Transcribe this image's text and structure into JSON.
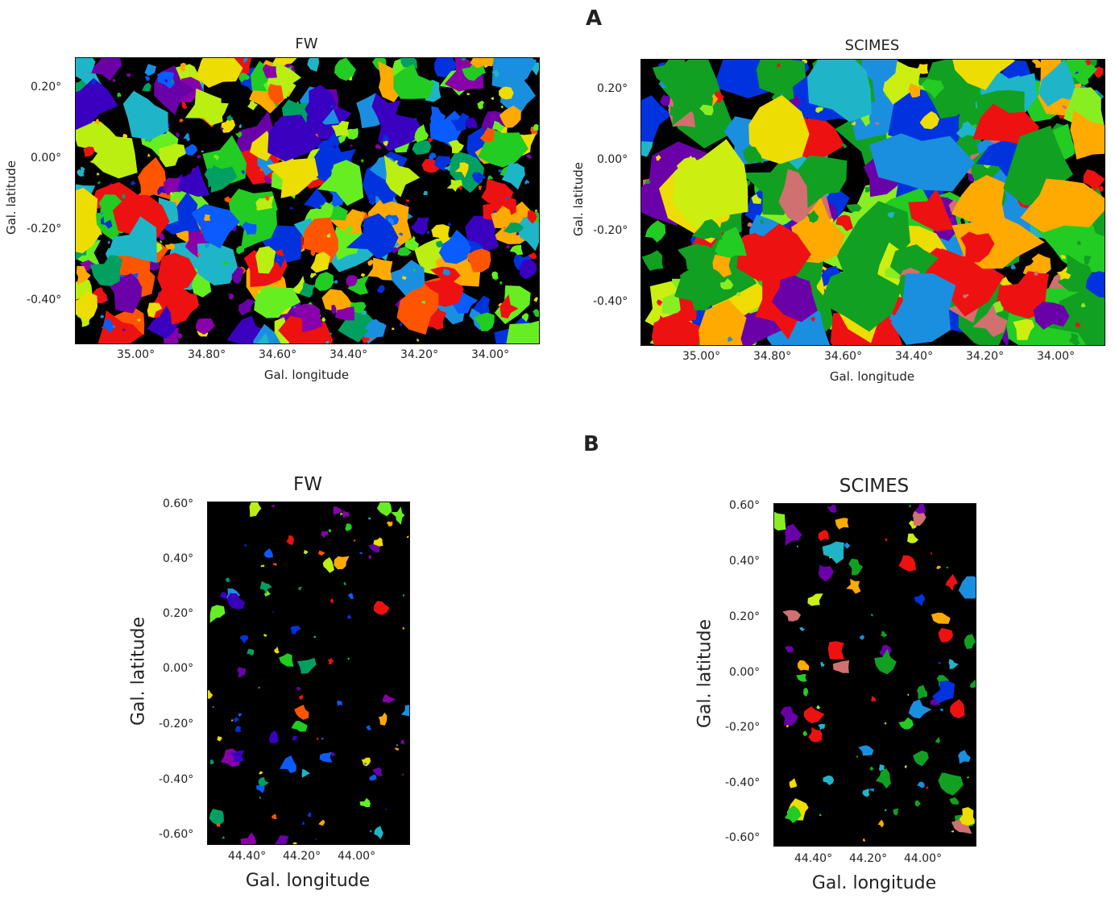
{
  "panels": {
    "A": {
      "letter": "A"
    },
    "B": {
      "letter": "B"
    }
  },
  "plots": [
    {
      "title": "FW",
      "xlabel": "Gal. longitude",
      "ylabel": "Gal. latitude",
      "xticks": [
        "35.00°",
        "34.80°",
        "34.60°",
        "34.40°",
        "34.20°",
        "34.00°"
      ],
      "yticks": [
        "0.20°",
        "0.00°",
        "-0.20°",
        "-0.40°"
      ]
    },
    {
      "title": "SCIMES",
      "xlabel": "Gal. longitude",
      "ylabel": "Gal. latitude",
      "xticks": [
        "35.00°",
        "34.80°",
        "34.60°",
        "34.40°",
        "34.20°",
        "34.00°"
      ],
      "yticks": [
        "0.20°",
        "0.00°",
        "-0.20°",
        "-0.40°"
      ]
    },
    {
      "title": "FW",
      "xlabel": "Gal. longitude",
      "ylabel": "Gal. latitude",
      "xticks": [
        "44.40°",
        "44.20°",
        "44.00°"
      ],
      "yticks": [
        "0.60°",
        "0.40°",
        "0.20°",
        "0.00°",
        "-0.20°",
        "-0.40°",
        "-0.60°"
      ]
    },
    {
      "title": "SCIMES",
      "xlabel": "Gal. longitude",
      "ylabel": "Gal. latitude",
      "xticks": [
        "44.40°",
        "44.20°",
        "44.00°"
      ],
      "yticks": [
        "0.60°",
        "0.40°",
        "0.20°",
        "0.00°",
        "-0.20°",
        "-0.40°",
        "-0.60°"
      ]
    }
  ],
  "palettes": {
    "fw": [
      "#6a00a8",
      "#8800aa",
      "#3a00c0",
      "#0033dd",
      "#0a5cff",
      "#1a8fe0",
      "#1fb5c8",
      "#00a060",
      "#22cc22",
      "#66ee22",
      "#bbee11",
      "#eedd00",
      "#ffaa00",
      "#ff5500",
      "#ee1111"
    ],
    "scimes": [
      "#11a022",
      "#11a022",
      "#11a022",
      "#22cc22",
      "#ee1111",
      "#ee1111",
      "#d07070",
      "#6a00a8",
      "#0033dd",
      "#1a8fe0",
      "#1fb5c8",
      "#ccee11",
      "#eedd00",
      "#ffaa00",
      "#88ee22"
    ]
  }
}
